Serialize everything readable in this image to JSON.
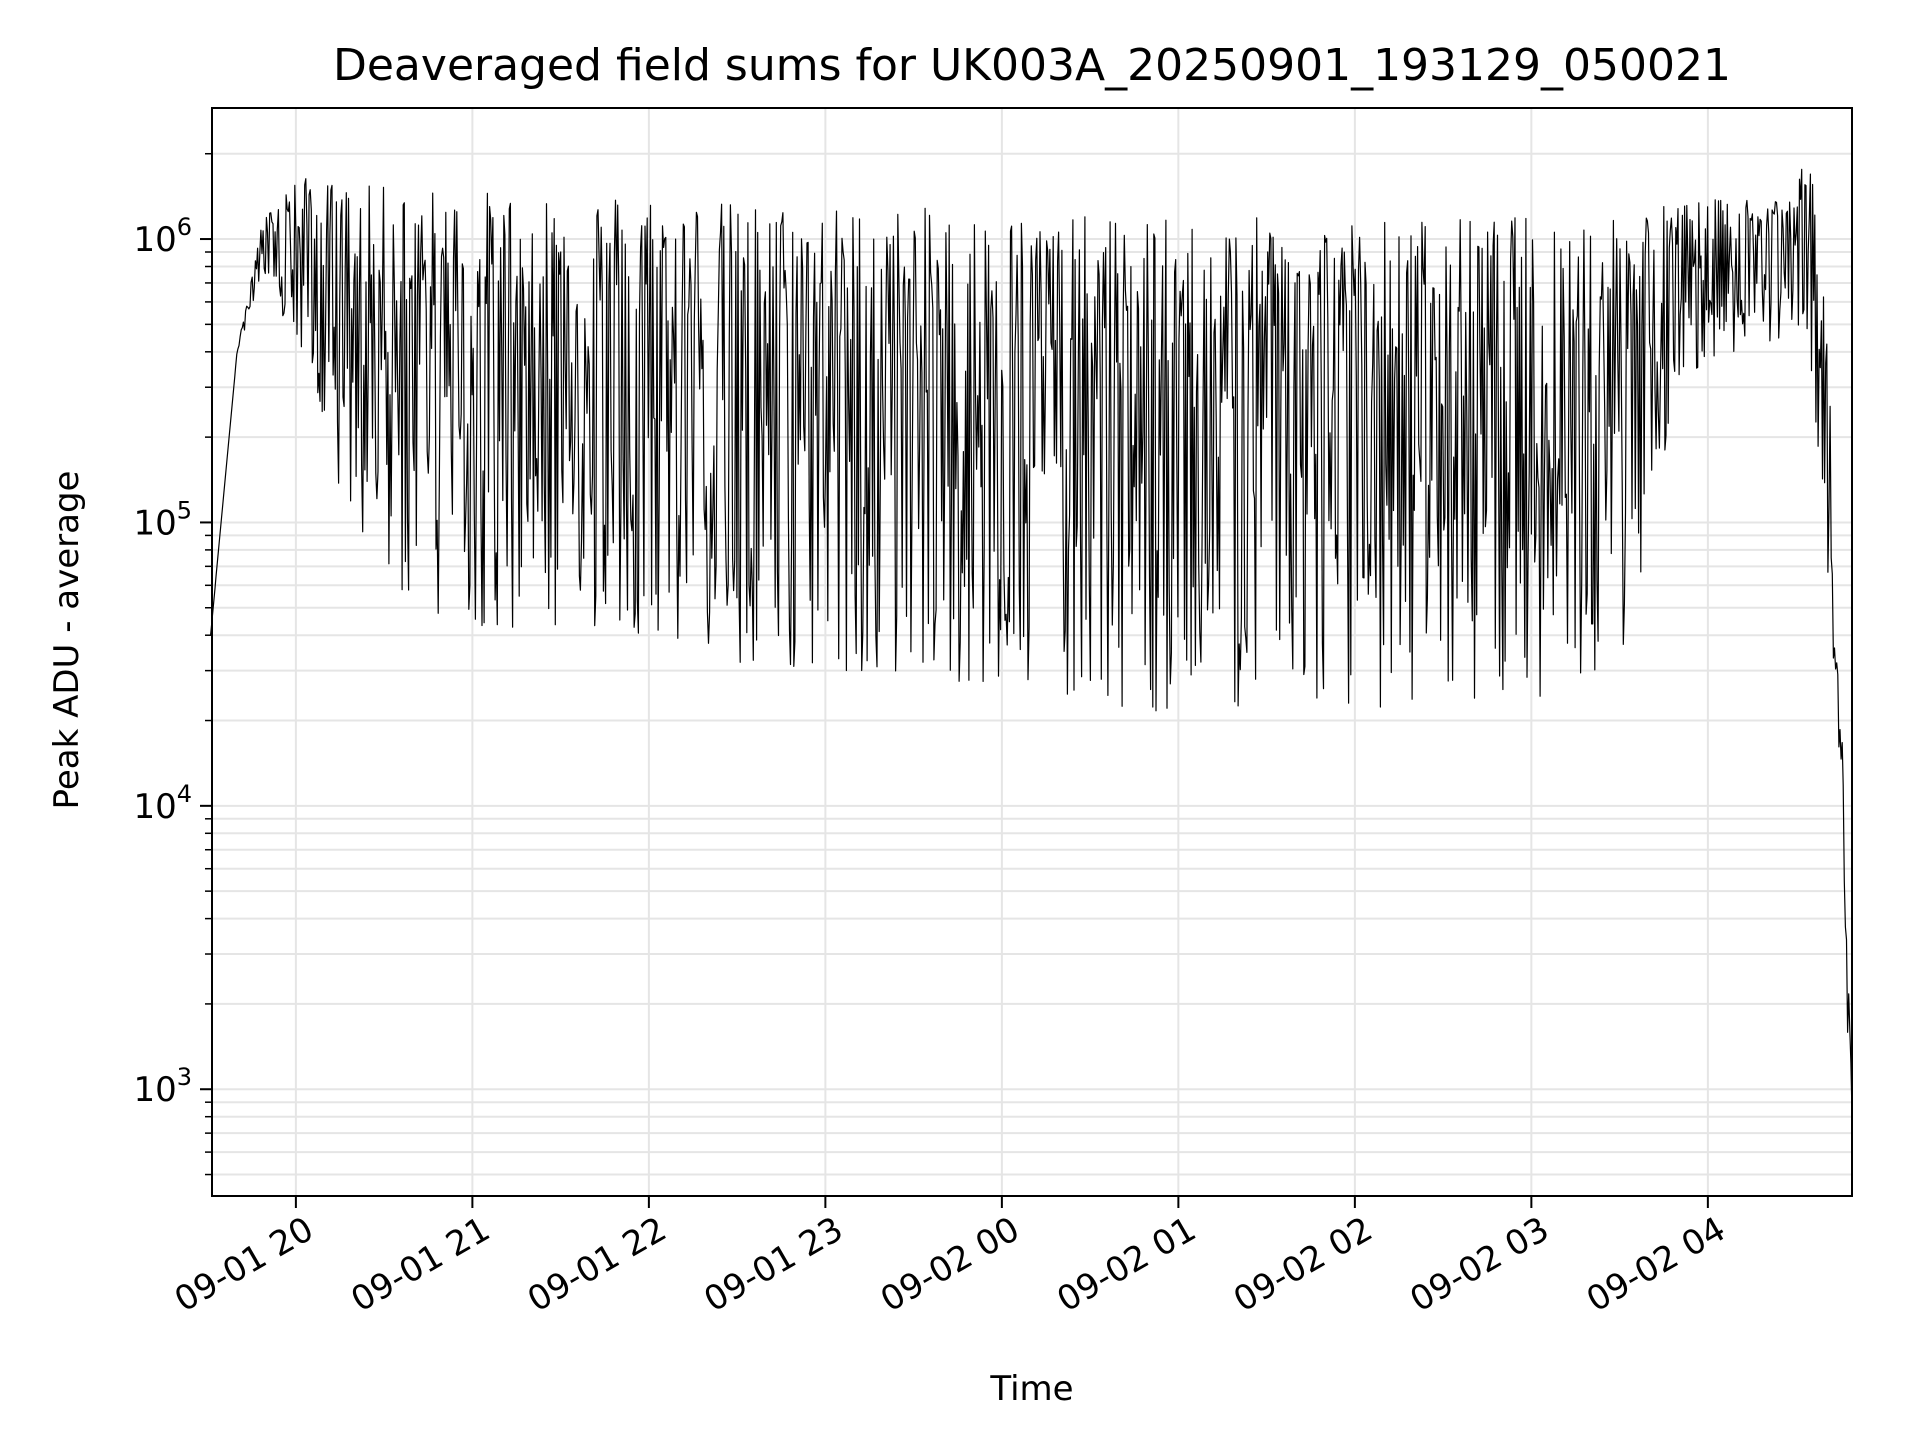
{
  "chart_data": {
    "type": "line",
    "title": "Deaveraged field sums for UK003A_20250901_193129_050021",
    "xlabel": "Time",
    "ylabel": "Peak ADU - average",
    "yscale": "log",
    "grid": true,
    "colors": {
      "line": "#000000",
      "grid": "#e5e5e5",
      "axes": "#000000",
      "background": "#ffffff"
    },
    "xlim": [
      "2025-09-01 19:31:29",
      "2025-09-02 04:49:00"
    ],
    "ylim": [
      420,
      2900000
    ],
    "x_ticks": [
      {
        "value": "2025-09-01 20:00",
        "label": "09-01 20"
      },
      {
        "value": "2025-09-01 21:00",
        "label": "09-01 21"
      },
      {
        "value": "2025-09-01 22:00",
        "label": "09-01 22"
      },
      {
        "value": "2025-09-01 23:00",
        "label": "09-01 23"
      },
      {
        "value": "2025-09-02 00:00",
        "label": "09-02 00"
      },
      {
        "value": "2025-09-02 01:00",
        "label": "09-02 01"
      },
      {
        "value": "2025-09-02 02:00",
        "label": "09-02 02"
      },
      {
        "value": "2025-09-02 03:00",
        "label": "09-02 03"
      },
      {
        "value": "2025-09-02 04:00",
        "label": "09-02 04"
      }
    ],
    "y_ticks": [
      {
        "value": 1000,
        "base": "10",
        "exp": "3"
      },
      {
        "value": 10000,
        "base": "10",
        "exp": "4"
      },
      {
        "value": 100000,
        "base": "10",
        "exp": "5"
      },
      {
        "value": 1000000,
        "base": "10",
        "exp": "6"
      }
    ],
    "series": [
      {
        "envelope": {
          "x": [
            "2025-09-01 19:31",
            "2025-09-01 19:40",
            "2025-09-01 19:48",
            "2025-09-01 19:56",
            "2025-09-01 20:04",
            "2025-09-01 20:12",
            "2025-09-01 20:20",
            "2025-09-01 20:35",
            "2025-09-01 20:50",
            "2025-09-01 21:10",
            "2025-09-01 21:30",
            "2025-09-01 21:50",
            "2025-09-01 22:10",
            "2025-09-01 22:30",
            "2025-09-01 22:50",
            "2025-09-01 23:10",
            "2025-09-01 23:30",
            "2025-09-01 23:50",
            "2025-09-02 00:10",
            "2025-09-02 00:30",
            "2025-09-02 00:50",
            "2025-09-02 01:10",
            "2025-09-02 01:30",
            "2025-09-02 01:50",
            "2025-09-02 02:10",
            "2025-09-02 02:30",
            "2025-09-02 02:50",
            "2025-09-02 03:10",
            "2025-09-02 03:30",
            "2025-09-02 03:50",
            "2025-09-02 04:10",
            "2025-09-02 04:25",
            "2025-09-02 04:35",
            "2025-09-02 04:40",
            "2025-09-02 04:44",
            "2025-09-02 04:47",
            "2025-09-02 04:49"
          ],
          "min": [
            40000,
            400000,
            700000,
            500000,
            300000,
            150000,
            90000,
            55000,
            45000,
            42000,
            40000,
            42000,
            38000,
            30000,
            28000,
            30000,
            29000,
            27000,
            25000,
            24000,
            21000,
            22000,
            22000,
            23000,
            22000,
            22000,
            23000,
            25000,
            28000,
            300000,
            400000,
            450000,
            350000,
            90000,
            20000,
            2000,
            800
          ],
          "max": [
            40000,
            400000,
            1100000,
            1600000,
            1650000,
            1600000,
            1550000,
            1550000,
            1500000,
            1480000,
            1500000,
            1500000,
            1450000,
            1350000,
            1350000,
            1300000,
            1300000,
            1250000,
            1250000,
            1200000,
            1200000,
            1150000,
            1200000,
            1200000,
            1200000,
            1200000,
            1200000,
            1250000,
            1300000,
            1350000,
            1400000,
            1500000,
            1900000,
            600000,
            90000,
            5000,
            1000
          ]
        }
      }
    ]
  }
}
